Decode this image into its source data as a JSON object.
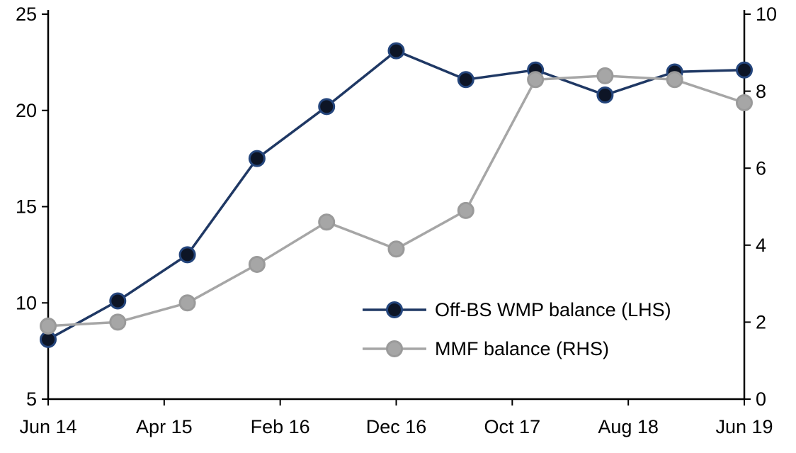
{
  "chart_data": {
    "type": "line",
    "title": "",
    "xlabel": "",
    "ylabel_left": "",
    "ylabel_right": "",
    "grid": false,
    "legend_position": "inside-bottom-center",
    "x_unit": "months-since-Jun-2014",
    "x_tick_labels": [
      "Jun 14",
      "Apr 15",
      "Feb 16",
      "Dec 16",
      "Oct 17",
      "Aug 18",
      "Jun 19"
    ],
    "x_tick_months": [
      0,
      10,
      20,
      30,
      40,
      50,
      60
    ],
    "x_months": [
      0,
      6,
      12,
      18,
      24,
      30,
      36,
      42,
      48,
      54,
      60
    ],
    "x_point_labels": [
      "Jun 14",
      "Dec 14",
      "Jun 15",
      "Dec 15",
      "Jun 16",
      "Dec 16",
      "Jun 17",
      "Dec 17",
      "Jun 18",
      "Dec 18",
      "Jun 19"
    ],
    "left_axis": {
      "min": 5,
      "max": 25,
      "ticks": [
        5,
        10,
        15,
        20,
        25
      ]
    },
    "right_axis": {
      "min": 0,
      "max": 10,
      "ticks": [
        0,
        2,
        4,
        6,
        8,
        10
      ]
    },
    "series": [
      {
        "name": "Off-BS WMP balance (LHS)",
        "axis": "left",
        "line_color": "#1f3864",
        "marker_fill": "#0d1526",
        "marker_stroke": "#24457c",
        "values": [
          8.1,
          10.1,
          12.5,
          17.5,
          20.2,
          23.1,
          21.6,
          22.1,
          20.8,
          22.0,
          22.1
        ]
      },
      {
        "name": "MMF balance (RHS)",
        "axis": "right",
        "line_color": "#a6a6a6",
        "marker_fill": "#a6a6a6",
        "marker_stroke": "#9a9a9a",
        "values": [
          1.9,
          2.0,
          2.5,
          3.5,
          4.6,
          3.9,
          4.9,
          8.3,
          8.4,
          8.3,
          7.7
        ]
      }
    ],
    "legend": [
      {
        "label": "Off-BS WMP balance (LHS)"
      },
      {
        "label": "MMF balance (RHS)"
      }
    ],
    "axis_color": "#000000",
    "background_color": "#ffffff"
  }
}
